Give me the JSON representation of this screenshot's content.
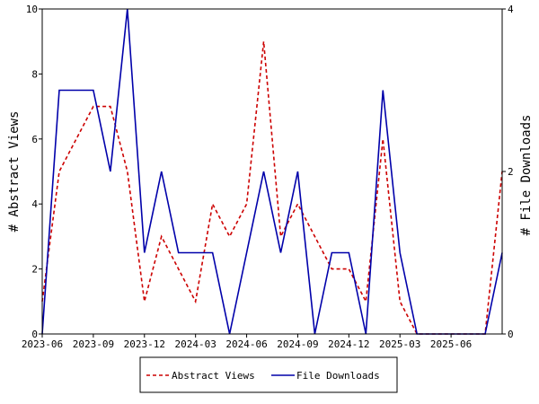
{
  "chart_data": {
    "type": "line",
    "x": [
      "2023-06",
      "2023-07",
      "2023-08",
      "2023-09",
      "2023-10",
      "2023-11",
      "2023-12",
      "2024-01",
      "2024-02",
      "2024-03",
      "2024-04",
      "2024-05",
      "2024-06",
      "2024-07",
      "2024-08",
      "2024-09",
      "2024-10",
      "2024-11",
      "2024-12",
      "2025-01",
      "2025-02",
      "2025-03",
      "2025-04",
      "2025-05",
      "2025-06",
      "2025-07",
      "2025-08",
      "2025-09"
    ],
    "x_tick_labels": [
      "2023-06",
      "2023-09",
      "2023-12",
      "2024-03",
      "2024-06",
      "2024-09",
      "2024-12",
      "2025-03",
      "2025-06"
    ],
    "series": [
      {
        "name": "Abstract Views",
        "axis": "left",
        "color": "#cc0000",
        "dash": "dashed",
        "values": [
          1,
          5,
          6,
          7,
          7,
          5,
          1,
          3,
          2,
          1,
          4,
          3,
          4,
          9,
          3,
          4,
          3,
          2,
          2,
          1,
          6,
          1,
          0,
          0,
          0,
          0,
          0,
          5
        ]
      },
      {
        "name": "File Downloads",
        "axis": "right",
        "color": "#0000aa",
        "dash": "solid",
        "values": [
          0,
          3,
          3,
          3,
          2,
          4,
          1,
          2,
          1,
          1,
          1,
          0,
          1,
          2,
          1,
          2,
          0,
          1,
          1,
          0,
          3,
          1,
          0,
          0,
          0,
          0,
          0,
          1
        ]
      }
    ],
    "ylabel_left": "# Abstract Views",
    "ylabel_right": "# File Downloads",
    "y_left_ticks": [
      0,
      2,
      4,
      6,
      8,
      10
    ],
    "y_right_ticks": [
      0,
      2,
      4
    ],
    "ylim_left": [
      0,
      10
    ],
    "ylim_right": [
      0,
      4
    ],
    "grid": false,
    "legend_position": "bottom-center"
  }
}
